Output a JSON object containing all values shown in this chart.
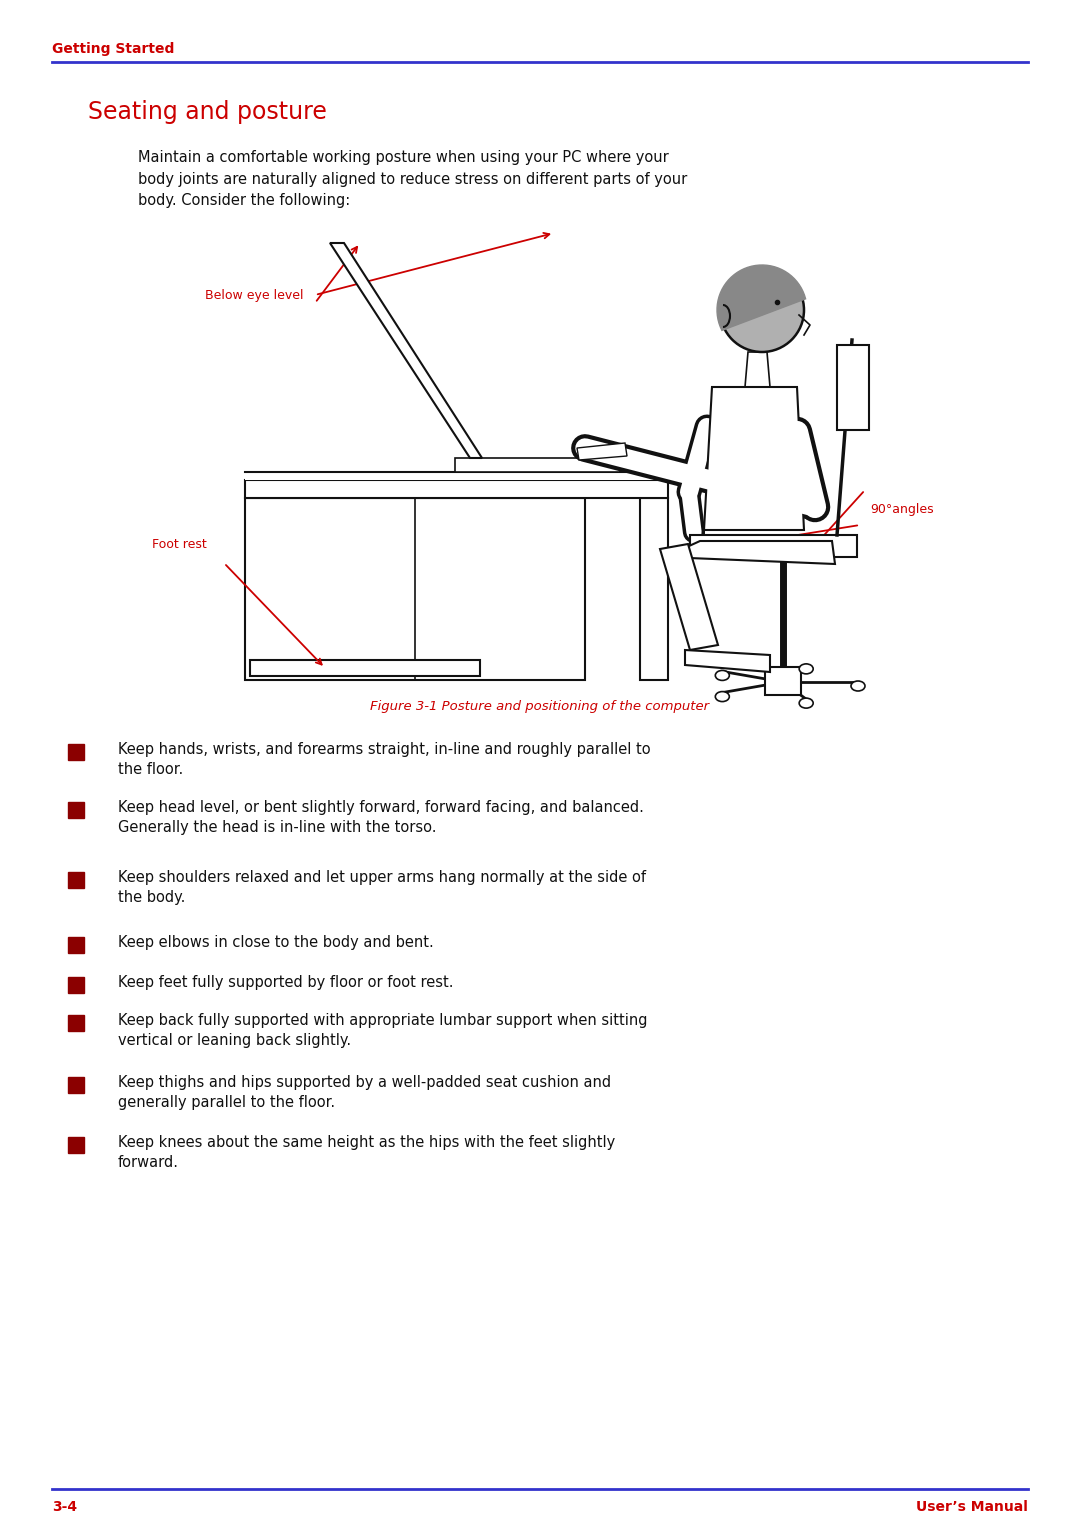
{
  "title": "Seating and posture",
  "header_text": "Getting Started",
  "intro_text": "Maintain a comfortable working posture when using your PC where your\nbody joints are naturally aligned to reduce stress on different parts of your\nbody. Consider the following:",
  "figure_caption": "Figure 3-1 Posture and positioning of the computer",
  "label_below_eye": "Below eye level",
  "label_foot_rest": "Foot rest",
  "label_angles": "90°angles",
  "bullet_points": [
    "Keep hands, wrists, and forearms straight, in-line and roughly parallel to\nthe floor.",
    "Keep head level, or bent slightly forward, forward facing, and balanced.\nGenerally the head is in-line with the torso.",
    "Keep shoulders relaxed and let upper arms hang normally at the side of\nthe body.",
    "Keep elbows in close to the body and bent.",
    "Keep feet fully supported by floor or foot rest.",
    "Keep back fully supported with appropriate lumbar support when sitting\nvertical or leaning back slightly.",
    "Keep thighs and hips supported by a well-padded seat cushion and\ngenerally parallel to the floor.",
    "Keep knees about the same height as the hips with the feet slightly\nforward."
  ],
  "footer_left": "3-4",
  "footer_right": "User’s Manual",
  "red_color": "#cc0000",
  "blue_color": "#3333cc",
  "dark_color": "#111111",
  "bg_color": "#ffffff"
}
